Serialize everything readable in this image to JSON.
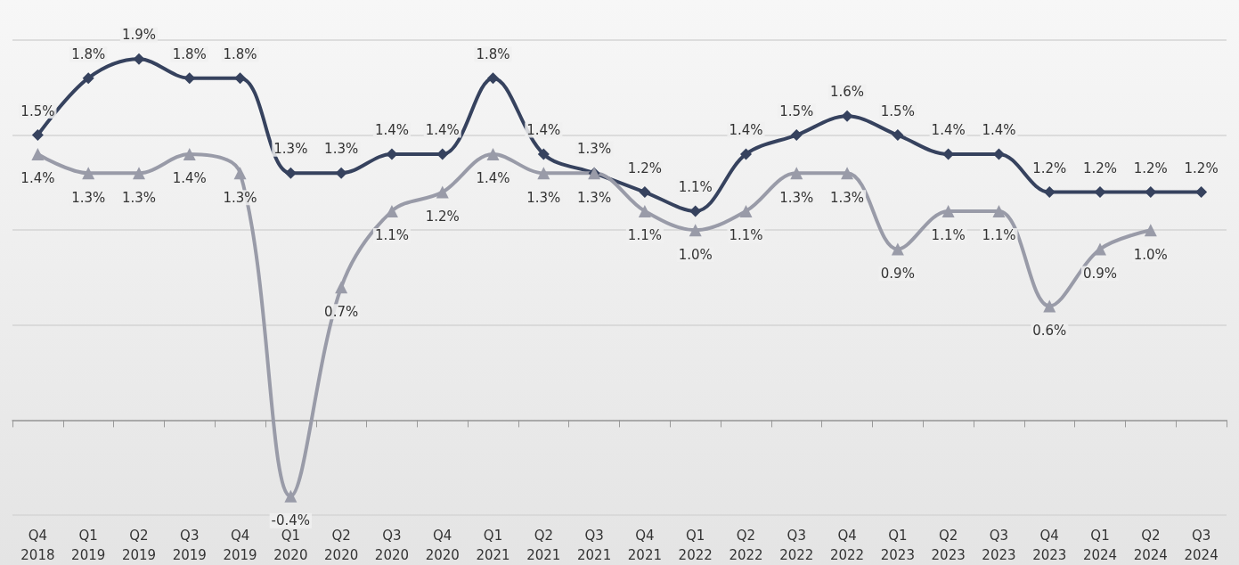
{
  "chart_data": {
    "type": "line",
    "categories": [
      "Q4\n2018",
      "Q1\n2019",
      "Q2\n2019",
      "Q3\n2019",
      "Q4\n2019",
      "Q1\n2020",
      "Q2\n2020",
      "Q3\n2020",
      "Q4\n2020",
      "Q1\n2021",
      "Q2\n2021",
      "Q3\n2021",
      "Q4\n2021",
      "Q1\n2022",
      "Q2\n2022",
      "Q3\n2022",
      "Q4\n2022",
      "Q1\n2023",
      "Q2\n2023",
      "Q3\n2023",
      "Q4\n2023",
      "Q1\n2024",
      "Q2\n2024",
      "Q3\n2024"
    ],
    "series": [
      {
        "color": "#36425e",
        "marker": "diamond",
        "values": [
          1.5,
          1.8,
          1.9,
          1.8,
          1.8,
          1.3,
          1.3,
          1.4,
          1.4,
          1.8,
          1.4,
          1.3,
          1.2,
          1.1,
          1.4,
          1.5,
          1.6,
          1.5,
          1.4,
          1.4,
          1.2,
          1.2,
          1.2,
          1.2
        ],
        "value_labels": [
          "1.5%",
          "1.8%",
          "1.9%",
          "1.8%",
          "1.8%",
          "1.3%",
          "1.3%",
          "1.4%",
          "1.4%",
          "1.8%",
          "1.4%",
          "1.3%",
          "1.2%",
          "1.1%",
          "1.4%",
          "1.5%",
          "1.6%",
          "1.5%",
          "1.4%",
          "1.4%",
          "1.2%",
          "1.2%",
          "1.2%",
          "1.2%"
        ]
      },
      {
        "color": "#999ba8",
        "marker": "triangle",
        "values": [
          1.4,
          1.3,
          1.3,
          1.4,
          1.3,
          -0.4,
          0.7,
          1.1,
          1.2,
          1.4,
          1.3,
          1.3,
          1.1,
          1.0,
          1.1,
          1.3,
          1.3,
          0.9,
          1.1,
          1.1,
          0.6,
          0.9,
          1.0,
          null
        ],
        "value_labels": [
          "1.4%",
          "1.3%",
          "1.3%",
          "1.4%",
          "1.3%",
          "-0.4%",
          "0.7%",
          "1.1%",
          "1.2%",
          "1.4%",
          "1.3%",
          "1.3%",
          "1.1%",
          "1.0%",
          "1.1%",
          "1.3%",
          "1.3%",
          "0.9%",
          "1.1%",
          "1.1%",
          "0.6%",
          "0.9%",
          "1.0%",
          null
        ]
      }
    ],
    "ylim": [
      -0.5,
      2.0
    ],
    "yticks": [
      {
        "value": -0.5,
        "label": null
      },
      {
        "value": 0,
        "label": null
      },
      {
        "value": 0.5,
        "label": null
      },
      {
        "value": 1.0,
        "label": null
      },
      {
        "value": 1.5,
        "label": null
      },
      {
        "value": 2.0,
        "label": null
      }
    ],
    "grid": "y",
    "tick_labels": "x",
    "line_style": "solid"
  }
}
